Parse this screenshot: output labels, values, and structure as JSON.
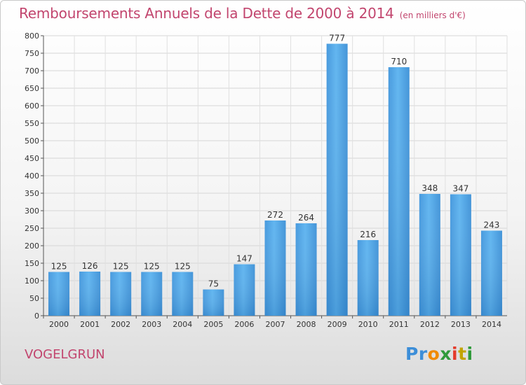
{
  "title": "Remboursements Annuels de la Dette de 2000 à 2014",
  "unit_note": "(en milliers d'€)",
  "town": "VOGELGRUN",
  "logo": {
    "text": "Proxiti",
    "colors": [
      "#3c8ed8",
      "#f08a00",
      "#2f9a3a",
      "#e43b2b",
      "#c2a400"
    ]
  },
  "colors": {
    "title": "#c2456e",
    "bar": "#3f9be0",
    "bar_light": "#5ab0ee",
    "grid": "#d8d8d8"
  },
  "chart_data": {
    "type": "bar",
    "categories": [
      "2000",
      "2001",
      "2002",
      "2003",
      "2004",
      "2005",
      "2006",
      "2007",
      "2008",
      "2009",
      "2010",
      "2011",
      "2012",
      "2013",
      "2014"
    ],
    "values": [
      125,
      126,
      125,
      125,
      125,
      75,
      147,
      272,
      264,
      777,
      216,
      710,
      348,
      347,
      243
    ],
    "data_labels": [
      "125",
      "126",
      "125",
      "125",
      "125",
      "75",
      "147",
      "272",
      "264",
      "777",
      "216",
      "710",
      "348",
      "347",
      "243"
    ],
    "title": "Remboursements Annuels de la Dette de 2000 à 2014",
    "xlabel": "",
    "ylabel": "",
    "ylim": [
      0,
      800
    ],
    "yticks": [
      0,
      50,
      100,
      150,
      200,
      250,
      300,
      350,
      400,
      450,
      500,
      550,
      600,
      650,
      700,
      750,
      800
    ],
    "grid": true,
    "legend": "none"
  }
}
